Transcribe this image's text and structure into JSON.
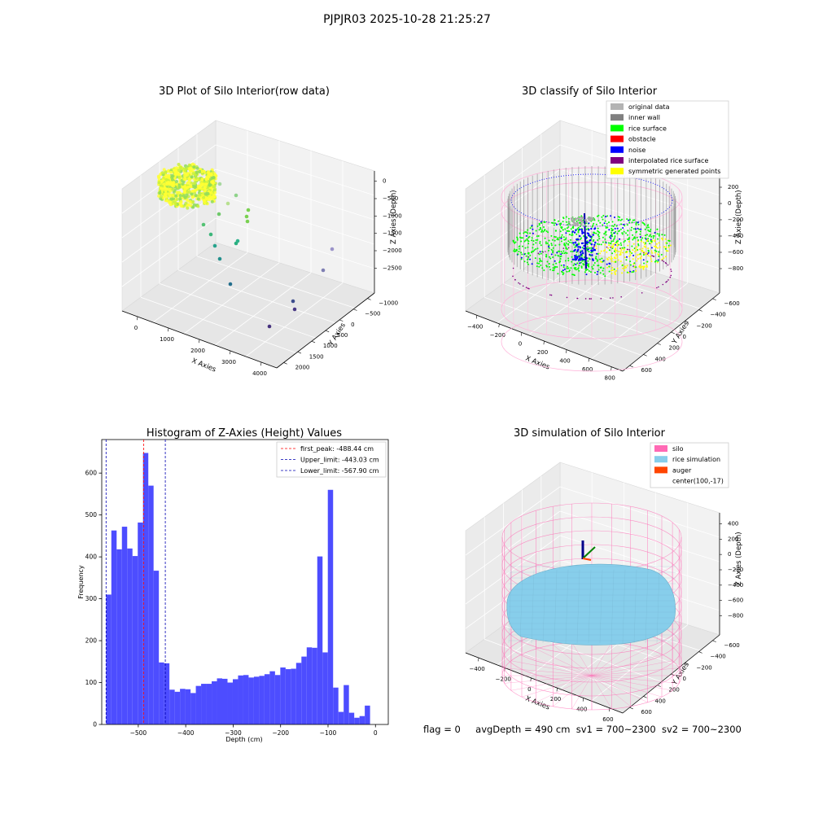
{
  "suptitle": "PJPJR03 2025-10-28 21:25:27",
  "status_line": {
    "flag": "flag = 0",
    "avg_depth": "avgDepth = 490 cm",
    "sv1": "sv1 = 700~2300",
    "sv2": "sv2 = 700~2300"
  },
  "colors": {
    "original_data": "#b3b3b3",
    "inner_wall": "#808080",
    "rice_surface": "#00ff00",
    "obstacle": "#ff0000",
    "noise": "#0000ff",
    "interpolated_rice_surface": "#800080",
    "symmetric_generated_points": "#ffff00",
    "silo": "#ff69b4",
    "rice_simulation": "#87ceeb",
    "auger": "#ff4500",
    "hist_bar": "#4d4dff",
    "first_peak_line": "#ff0000",
    "limit_line": "#0000b3"
  },
  "panel_raw": {
    "title": "3D Plot of Silo Interior(row data)",
    "xlabel": "X Axies",
    "ylabel": "Y Axies",
    "zlabel": "Z Axies (Depth)",
    "x_ticks": [
      "0",
      "1000",
      "2000",
      "3000",
      "4000"
    ],
    "y_ticks": [
      "2000",
      "1500",
      "1000",
      "500",
      "0",
      "−500",
      "−1000"
    ],
    "z_ticks": [
      "0",
      "−500",
      "−1000",
      "−1500",
      "−2000",
      "−2500"
    ]
  },
  "panel_classify": {
    "title": "3D classify of Silo Interior",
    "xlabel": "X Axies",
    "ylabel": "Y Axies",
    "zlabel": "Z Axies (Depth)",
    "x_ticks": [
      "−400",
      "−200",
      "0",
      "200",
      "400",
      "600",
      "800"
    ],
    "y_ticks": [
      "600",
      "400",
      "200",
      "0",
      "−200",
      "−400",
      "−600"
    ],
    "z_ticks": [
      "200",
      "0",
      "−200",
      "−400",
      "−600",
      "−800"
    ],
    "legend": [
      {
        "label": "original data",
        "color_key": "original_data"
      },
      {
        "label": "inner wall",
        "color_key": "inner_wall"
      },
      {
        "label": "rice surface",
        "color_key": "rice_surface"
      },
      {
        "label": "obstacle",
        "color_key": "obstacle"
      },
      {
        "label": "noise",
        "color_key": "noise"
      },
      {
        "label": "interpolated rice surface",
        "color_key": "interpolated_rice_surface"
      },
      {
        "label": "symmetric generated points",
        "color_key": "symmetric_generated_points"
      }
    ]
  },
  "panel_simulation": {
    "title": "3D simulation of Silo Interior",
    "xlabel": "X Axies",
    "ylabel": "Y Axies",
    "zlabel": "Z Axies (Depth)",
    "x_ticks": [
      "−400",
      "−200",
      "0",
      "200",
      "400",
      "600"
    ],
    "y_ticks": [
      "600",
      "400",
      "200",
      "0",
      "−200",
      "−400",
      "−600"
    ],
    "z_ticks": [
      "400",
      "200",
      "0",
      "−200",
      "−400",
      "−600",
      "−800"
    ],
    "legend": [
      {
        "label": "silo",
        "color_key": "silo"
      },
      {
        "label": "rice simulation",
        "color_key": "rice_simulation"
      },
      {
        "label": "auger",
        "color_key": "auger"
      },
      {
        "label": "center(100,-17)",
        "color_key": ""
      }
    ]
  },
  "chart_data": {
    "type": "bar",
    "title": "Histogram of Z-Axies (Height) Values",
    "xlabel": "Depth (cm)",
    "ylabel": "Frequency",
    "xlim": [
      -577,
      27
    ],
    "ylim": [
      0,
      680
    ],
    "x_ticks": [
      -500,
      -400,
      -300,
      -200,
      -100,
      0
    ],
    "x_tick_labels": [
      "−500",
      "−400",
      "−300",
      "−200",
      "−100",
      "0"
    ],
    "y_ticks": [
      0,
      100,
      200,
      300,
      400,
      500,
      600
    ],
    "bin_start": -567.9,
    "bin_width": 11.13,
    "values": [
      310,
      463,
      418,
      472,
      420,
      402,
      482,
      648,
      570,
      367,
      148,
      146,
      83,
      78,
      85,
      84,
      75,
      92,
      97,
      97,
      103,
      110,
      109,
      100,
      108,
      117,
      118,
      112,
      114,
      116,
      120,
      127,
      118,
      136,
      132,
      133,
      147,
      162,
      184,
      183,
      401,
      172,
      560,
      88,
      30,
      94,
      28,
      16,
      20,
      45
    ],
    "vlines": [
      {
        "label": "first_peak: -488.44 cm",
        "x": -488.44,
        "color_key": "first_peak_line"
      },
      {
        "label": "Upper_limit: -443.03 cm",
        "x": -443.03,
        "color_key": "limit_line"
      },
      {
        "label": "Lower_limit: -567.90 cm",
        "x": -567.9,
        "color_key": "limit_line"
      }
    ],
    "legend_position": "top-right",
    "grid": false
  }
}
